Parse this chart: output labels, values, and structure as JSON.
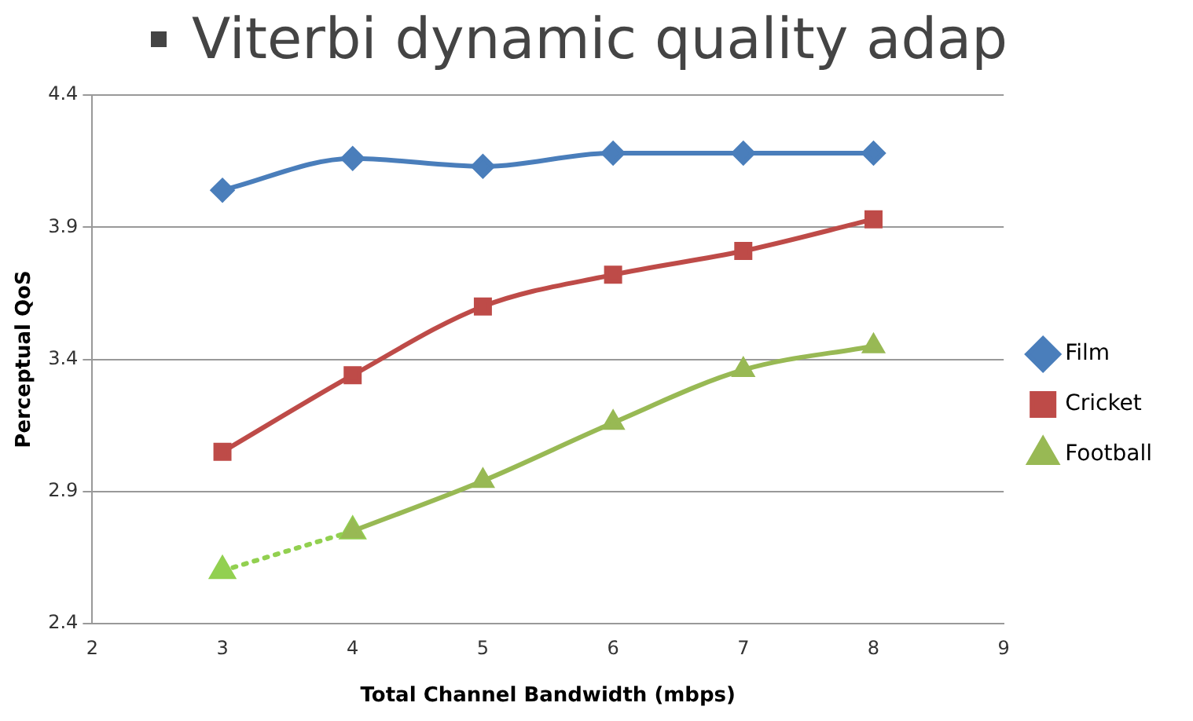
{
  "chart_data": {
    "type": "line",
    "title": "Viterbi dynamic quality adap",
    "xlabel": "Total Channel Bandwidth (mbps)",
    "ylabel": "Perceptual QoS",
    "xlim": [
      2,
      9
    ],
    "xticks": [
      2,
      3,
      4,
      5,
      6,
      7,
      8,
      9
    ],
    "ylim": [
      2.4,
      4.4
    ],
    "yticks": [
      2.4,
      2.9,
      3.4,
      3.9,
      4.4
    ],
    "grid": "y",
    "legend": "right",
    "series": [
      {
        "name": "Film",
        "color": "#4a7ebb",
        "marker": "diamond",
        "line_style": "solid",
        "x": [
          3,
          4,
          5,
          6,
          7,
          8
        ],
        "values": [
          4.04,
          4.16,
          4.13,
          4.18,
          4.18,
          4.18
        ]
      },
      {
        "name": "Cricket",
        "color": "#be4b48",
        "marker": "square",
        "line_style": "solid",
        "x": [
          3,
          4,
          5,
          6,
          7,
          8
        ],
        "values": [
          3.05,
          3.34,
          3.6,
          3.72,
          3.81,
          3.93
        ]
      },
      {
        "name": "Football",
        "color": "#98b954",
        "marker": "triangle",
        "line_style": "solid",
        "x": [
          4,
          5,
          6,
          7,
          8
        ],
        "values": [
          2.75,
          2.94,
          3.16,
          3.36,
          3.45
        ]
      },
      {
        "color": "#92d050",
        "marker": "triangle",
        "line_style": "dotted",
        "x": [
          3,
          4
        ],
        "values": [
          2.6,
          2.75
        ]
      }
    ]
  }
}
